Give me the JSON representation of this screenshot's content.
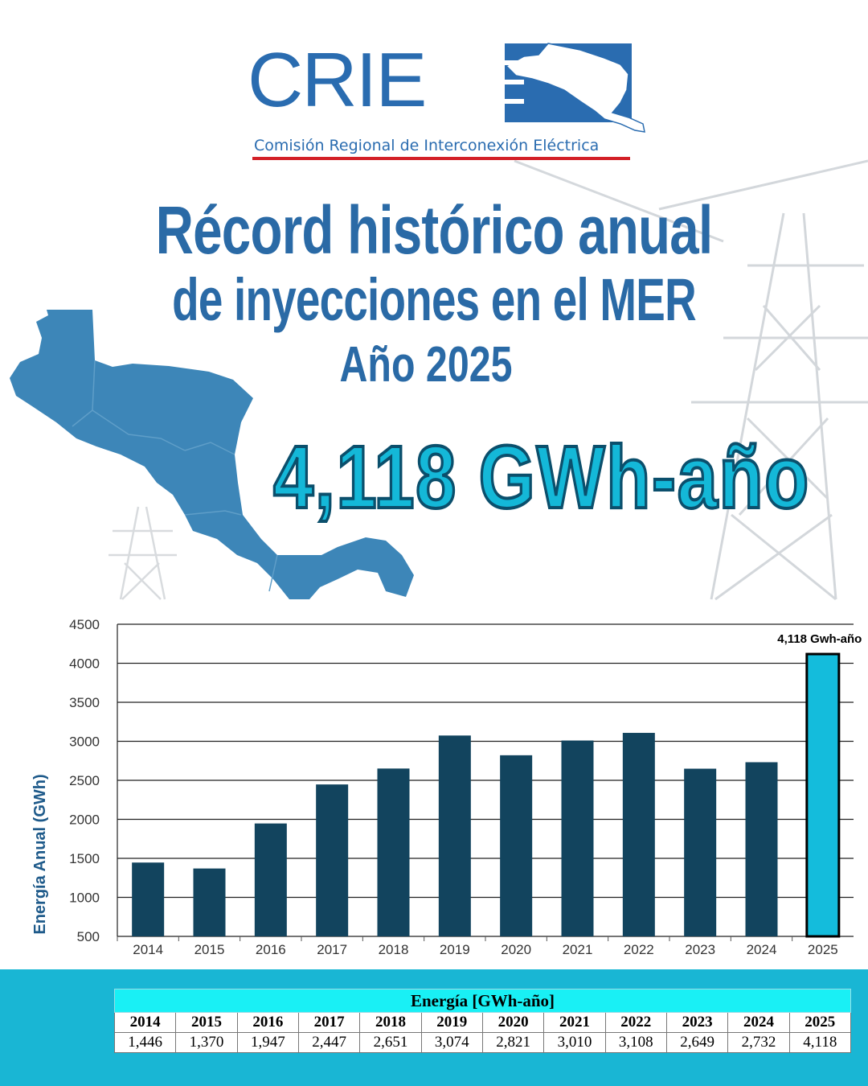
{
  "logo": {
    "wordmark": "CRIE",
    "subtitle": "Comisión Regional de Interconexión Eléctrica"
  },
  "headline": {
    "line1": "Récord histórico anual",
    "line2": "de inyecciones en el MER",
    "line3": "Año 2025",
    "highlight": "4,118 GWh-año"
  },
  "colors": {
    "brand_blue": "#2a6cb0",
    "bar_dark": "#12445e",
    "bar_highlight": "#14bcdc",
    "band": "#19b6d4",
    "accent_red": "#d32027"
  },
  "chart_data": {
    "type": "bar",
    "categories": [
      "2014",
      "2015",
      "2016",
      "2017",
      "2018",
      "2019",
      "2020",
      "2021",
      "2022",
      "2023",
      "2024",
      "2025"
    ],
    "values": [
      1446,
      1370,
      1947,
      2447,
      2651,
      3074,
      2821,
      3010,
      3108,
      2649,
      2732,
      4118
    ],
    "ylabel": "Energía Anual (GWh)",
    "xlabel": "",
    "ylim": [
      500,
      4500
    ],
    "yticks": [
      "500",
      "1000",
      "1500",
      "2000",
      "2500",
      "3000",
      "3500",
      "4000",
      "4500"
    ],
    "grid": true,
    "highlight_index": 11,
    "annotation": "4,118 Gwh-año"
  },
  "table": {
    "caption": "Energía [GWh-año]",
    "years": [
      "2014",
      "2015",
      "2016",
      "2017",
      "2018",
      "2019",
      "2020",
      "2021",
      "2022",
      "2023",
      "2024",
      "2025"
    ],
    "values": [
      "1,446",
      "1,370",
      "1,947",
      "2,447",
      "2,651",
      "3,074",
      "2,821",
      "3,010",
      "3,108",
      "2,649",
      "2,732",
      "4,118"
    ]
  }
}
